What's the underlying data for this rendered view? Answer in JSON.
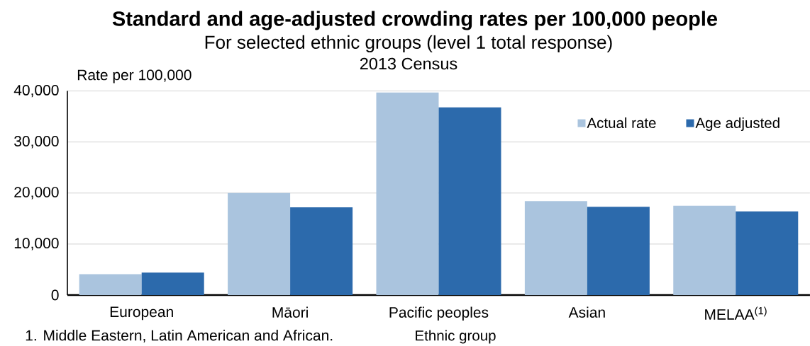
{
  "chart_data": {
    "type": "bar",
    "title": "Standard and age-adjusted crowding rates per 100,000 people",
    "subtitle": "For selected ethnic groups (level 1 total response)",
    "annotations": [
      "2013 Census",
      "1. Middle Eastern, Latin American and African."
    ],
    "xlabel": "Ethnic group",
    "ylabel": "Rate per 100,000",
    "categories": [
      "European",
      "Māori",
      "Pacific peoples",
      "Asian",
      "MELAA$^{(1)}$"
    ],
    "series": [
      {
        "name": "Actual rate",
        "color": "#aac4de",
        "values": [
          4100,
          20000,
          39700,
          18400,
          17500
        ]
      },
      {
        "name": "Age adjusted",
        "color": "#2c6aac",
        "values": [
          4400,
          17200,
          36800,
          17300,
          16400
        ]
      }
    ],
    "ylim": [
      0,
      40000
    ],
    "yticks": [
      0,
      {
        "value": 10000,
        "label": "10,000"
      },
      {
        "value": 20000,
        "label": "20,000"
      },
      {
        "value": 30000,
        "label": "30,000"
      },
      {
        "value": 40000,
        "label": "40,000"
      }
    ],
    "grid": "y",
    "legend": "top right"
  }
}
